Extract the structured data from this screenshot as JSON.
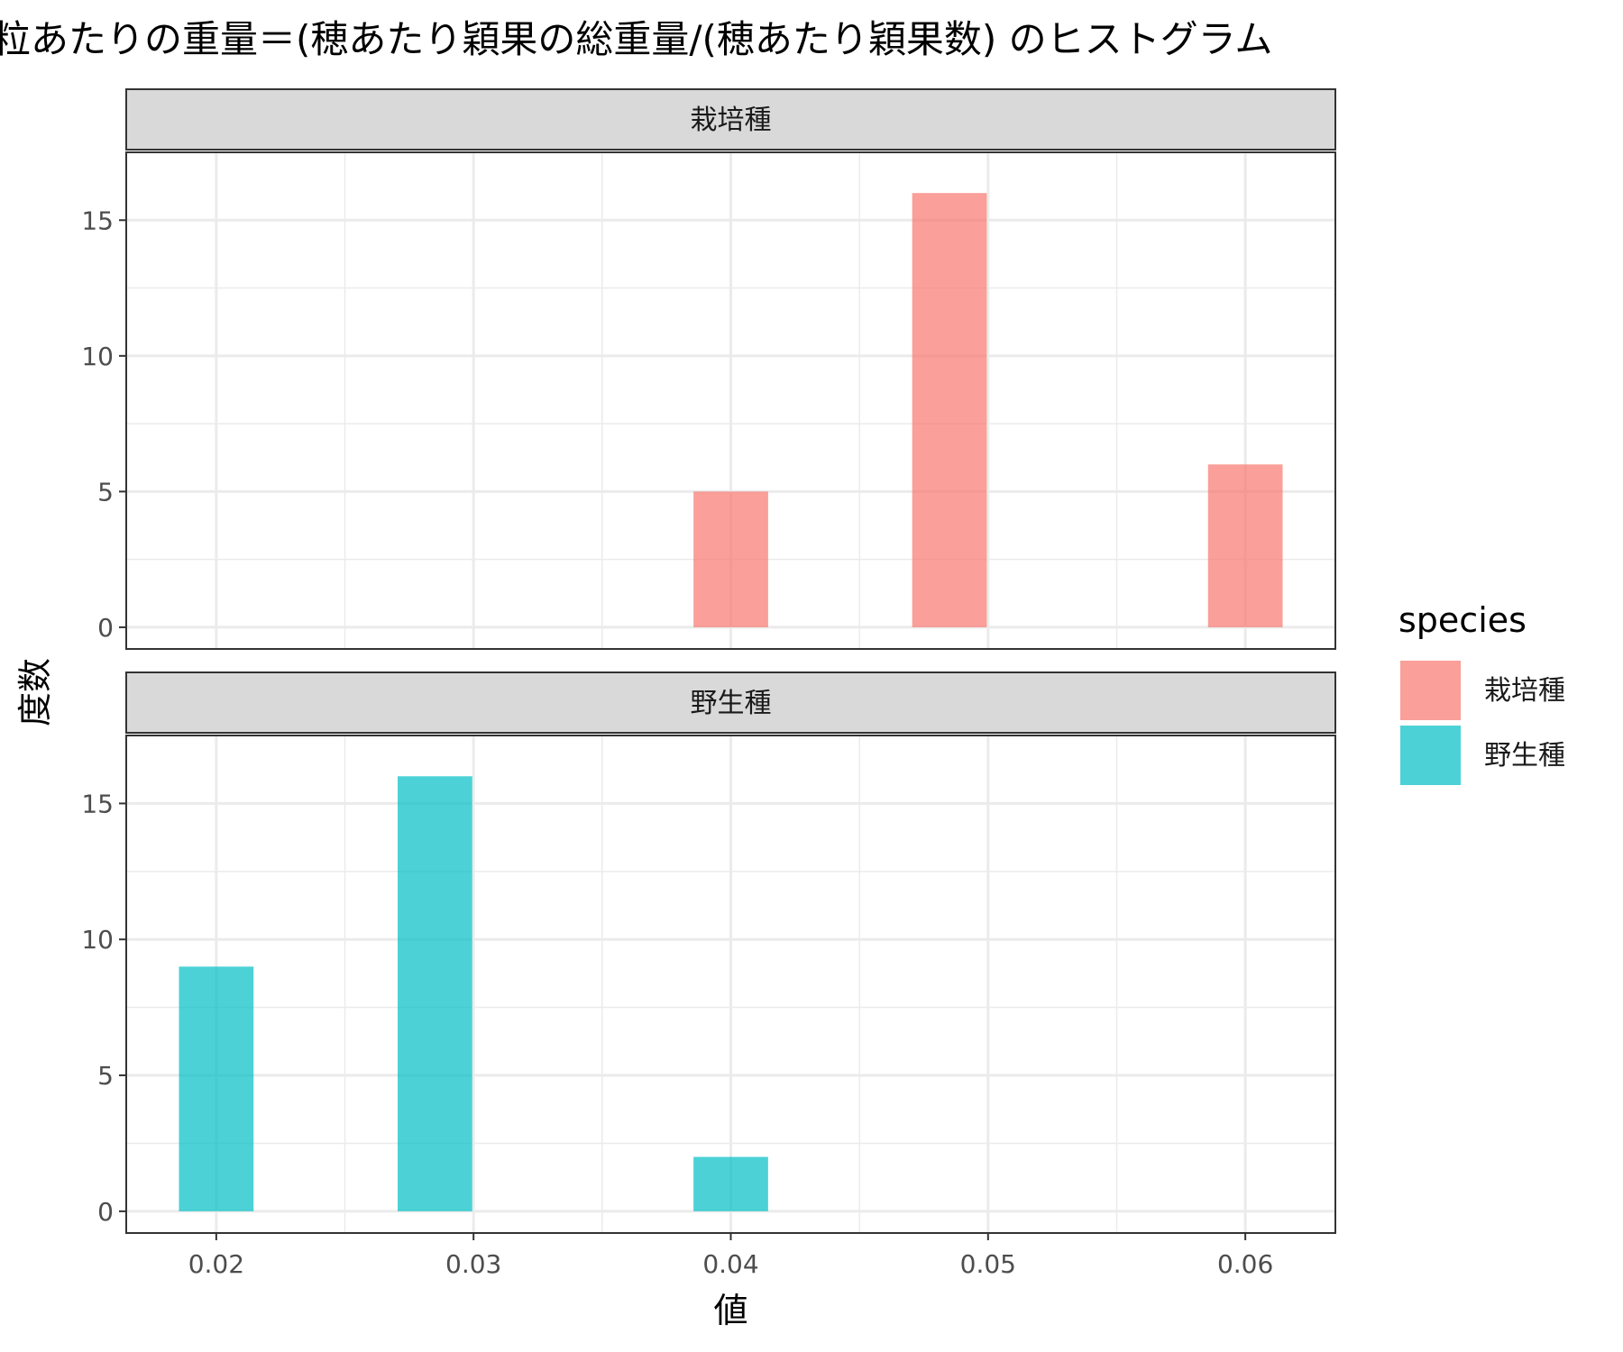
{
  "chart_data": {
    "type": "bar",
    "title": "粒あたりの重量＝(穂あたり穎果の総重量/(穂あたり穎果数) のヒストグラム",
    "xlabel": "値",
    "ylabel": "度数",
    "xlim": [
      0.0165,
      0.0635
    ],
    "ylim": [
      -0.8,
      17.5
    ],
    "x_ticks": [
      "0.02",
      "0.03",
      "0.04",
      "0.05",
      "0.06"
    ],
    "x_tick_values": [
      0.02,
      0.03,
      0.04,
      0.05,
      0.06
    ],
    "y_ticks": [
      "0",
      "5",
      "10",
      "15"
    ],
    "y_tick_values": [
      0,
      5,
      10,
      15
    ],
    "bin_width": 0.0029,
    "grid": true,
    "legend": {
      "title": "species",
      "position": "right",
      "entries": [
        "栽培種",
        "野生種"
      ]
    },
    "panels": [
      {
        "strip": "栽培種",
        "color": "#F8766D",
        "bins": [
          {
            "x": 0.04,
            "count": 5
          },
          {
            "x": 0.0485,
            "count": 16
          },
          {
            "x": 0.06,
            "count": 6
          }
        ]
      },
      {
        "strip": "野生種",
        "color": "#00BFC4",
        "bins": [
          {
            "x": 0.02,
            "count": 9
          },
          {
            "x": 0.0285,
            "count": 16
          },
          {
            "x": 0.04,
            "count": 2
          }
        ]
      }
    ]
  }
}
